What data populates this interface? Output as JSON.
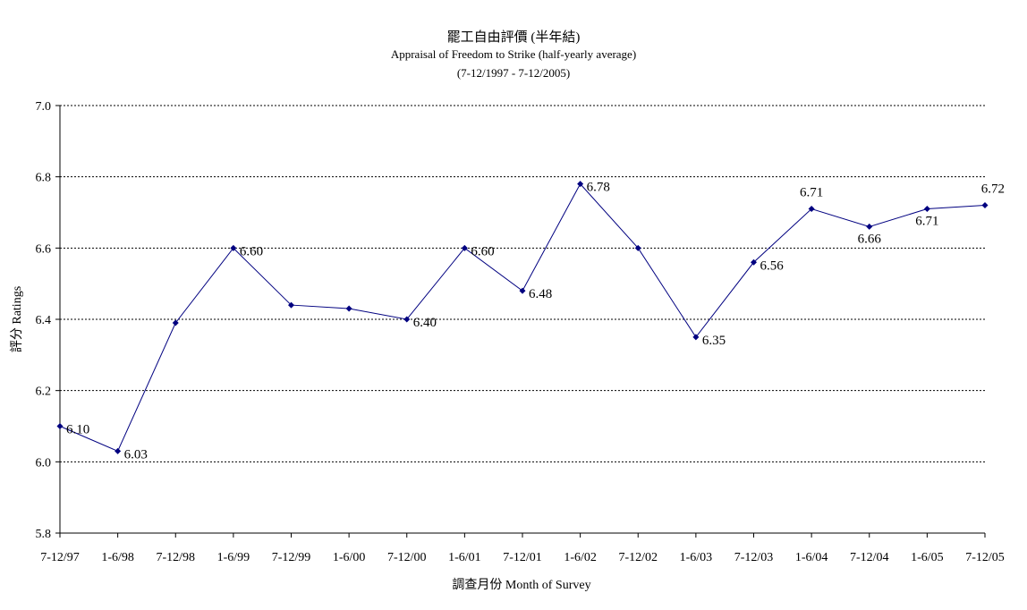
{
  "chart_data": {
    "type": "line",
    "title": "罷工自由評價 (半年結)",
    "subtitle": "Appraisal of Freedom to Strike (half-yearly average)",
    "period": "(7-12/1997 - 7-12/2005)",
    "xlabel": "調查月份 Month of Survey",
    "ylabel": "評分 Ratings",
    "ylim": [
      5.8,
      7.0
    ],
    "yticks": [
      "5.8",
      "6.0",
      "6.2",
      "6.4",
      "6.6",
      "6.8",
      "7.0"
    ],
    "grid": true,
    "categories": [
      "7-12/97",
      "1-6/98",
      "7-12/98",
      "1-6/99",
      "7-12/99",
      "1-6/00",
      "7-12/00",
      "1-6/01",
      "7-12/01",
      "1-6/02",
      "7-12/02",
      "1-6/03",
      "7-12/03",
      "1-6/04",
      "7-12/04",
      "1-6/05",
      "7-12/05"
    ],
    "series": [
      {
        "values": [
          6.1,
          6.03,
          6.39,
          6.6,
          6.44,
          6.43,
          6.4,
          6.6,
          6.48,
          6.78,
          6.6,
          6.35,
          6.56,
          6.71,
          6.66,
          6.71,
          6.72
        ],
        "labels": [
          "6.10",
          "6.03",
          "",
          "6.60",
          "",
          "",
          "6.40",
          "6.60",
          "6.48",
          "6.78",
          "",
          "6.35",
          "6.56",
          "6.71",
          "6.66",
          "6.71",
          "6.72"
        ],
        "color": "#000080"
      }
    ]
  }
}
